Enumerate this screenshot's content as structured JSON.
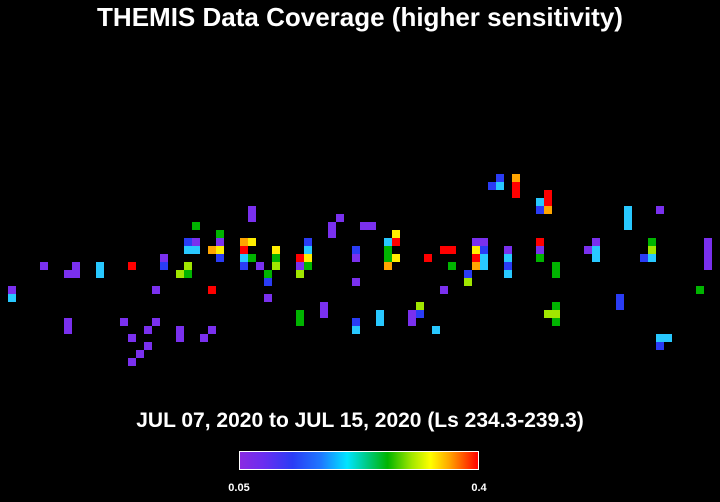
{
  "title": "THEMIS Data Coverage (higher sensitivity)",
  "subtitle": "JUL 07, 2020 to JUL 15, 2020 (Ls 234.3-239.3)",
  "colorbar": {
    "min_label": "0.05",
    "max_label": "0.4",
    "min": 0.05,
    "max": 0.4,
    "colors": [
      "#8a2be2",
      "#2a3cf5",
      "#1e78ff",
      "#00e5ff",
      "#00b400",
      "#a0e600",
      "#ffff00",
      "#ffa500",
      "#ff0000"
    ]
  }
}
